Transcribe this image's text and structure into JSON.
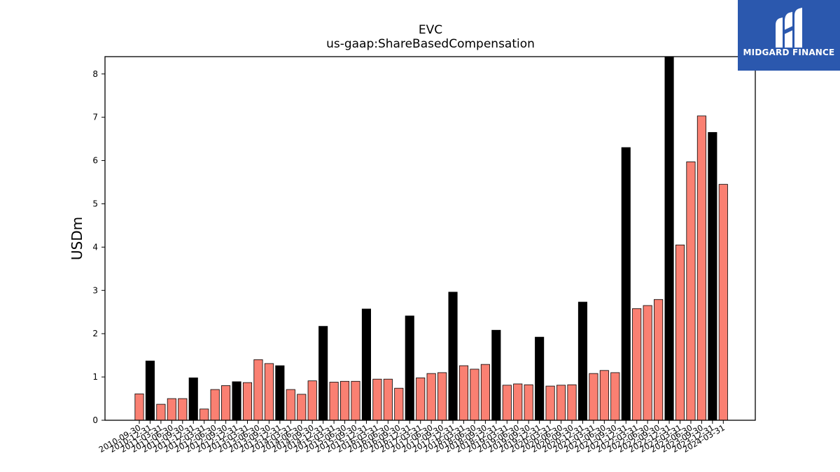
{
  "chart_data": {
    "type": "bar",
    "title": "EVC",
    "subtitle": "us-gaap:ShareBasedCompensation",
    "xlabel": "",
    "ylabel": "USDm",
    "ylim": [
      0,
      8.4
    ],
    "yticks": [
      0,
      1,
      2,
      3,
      4,
      5,
      6,
      7,
      8
    ],
    "grid": false,
    "colors": {
      "quarterly": "#fa8072",
      "annual": "#000000"
    },
    "categories": [
      "2010-09-30",
      "2010-12-31",
      "2011-03-31",
      "2011-06-30",
      "2011-09-30",
      "2011-12-31",
      "2012-03-31",
      "2012-06-30",
      "2012-09-30",
      "2012-12-31",
      "2013-03-31",
      "2013-06-30",
      "2013-09-30",
      "2013-12-31",
      "2014-03-31",
      "2014-06-30",
      "2014-09-30",
      "2014-12-31",
      "2015-03-31",
      "2015-06-30",
      "2015-09-30",
      "2015-12-31",
      "2016-03-31",
      "2016-06-30",
      "2016-09-30",
      "2016-12-31",
      "2017-03-31",
      "2017-06-30",
      "2017-09-30",
      "2017-12-31",
      "2018-03-31",
      "2018-06-30",
      "2018-09-30",
      "2018-12-31",
      "2019-03-31",
      "2019-06-30",
      "2019-09-30",
      "2019-12-31",
      "2020-03-31",
      "2020-06-30",
      "2020-09-30",
      "2020-12-31",
      "2021-03-31",
      "2021-06-30",
      "2021-09-30",
      "2021-12-31",
      "2022-03-31",
      "2022-06-30",
      "2022-09-30",
      "2022-12-31",
      "2023-03-31",
      "2023-06-30",
      "2023-09-30",
      "2023-12-31",
      "2024-03-31"
    ],
    "values": [
      0.61,
      1.37,
      0.37,
      0.5,
      0.5,
      0.98,
      0.26,
      0.71,
      0.8,
      0.89,
      0.87,
      1.4,
      1.31,
      1.26,
      0.71,
      0.6,
      0.91,
      2.17,
      0.88,
      0.9,
      0.9,
      2.57,
      0.95,
      0.95,
      0.74,
      2.41,
      0.98,
      1.08,
      1.1,
      2.96,
      1.26,
      1.18,
      1.29,
      2.08,
      0.81,
      0.84,
      0.82,
      1.92,
      0.79,
      0.81,
      0.82,
      2.73,
      1.08,
      1.15,
      1.1,
      6.3,
      2.58,
      2.65,
      2.79,
      8.4,
      4.05,
      5.97,
      7.03,
      6.65,
      5.45
    ],
    "kinds": [
      "q",
      "a",
      "q",
      "q",
      "q",
      "a",
      "q",
      "q",
      "q",
      "a",
      "q",
      "q",
      "q",
      "a",
      "q",
      "q",
      "q",
      "a",
      "q",
      "q",
      "q",
      "a",
      "q",
      "q",
      "q",
      "a",
      "q",
      "q",
      "q",
      "a",
      "q",
      "q",
      "q",
      "a",
      "q",
      "q",
      "q",
      "a",
      "q",
      "q",
      "q",
      "a",
      "q",
      "q",
      "q",
      "a",
      "q",
      "q",
      "q",
      "a",
      "q",
      "q",
      "q",
      "a",
      "q"
    ]
  },
  "logo": {
    "brand": "MIDGARD FINANCE",
    "icon": "midgard-logo-icon"
  }
}
